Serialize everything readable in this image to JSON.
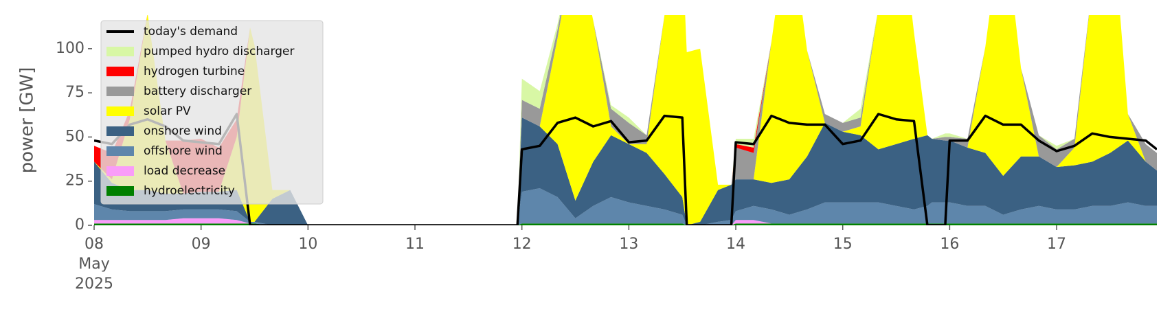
{
  "chart_data": {
    "type": "area",
    "ylabel": "power [GW]",
    "ylim": [
      0,
      119
    ],
    "yticks": [
      0,
      25,
      50,
      75,
      100
    ],
    "xlim": [
      "2025-05-08T00:00",
      "2025-05-17T22:30"
    ],
    "xticks": [
      {
        "value": "2025-05-08",
        "label": "08"
      },
      {
        "value": "2025-05-09",
        "label": "09"
      },
      {
        "value": "2025-05-10",
        "label": "10"
      },
      {
        "value": "2025-05-11",
        "label": "11"
      },
      {
        "value": "2025-05-12",
        "label": "12"
      },
      {
        "value": "2025-05-13",
        "label": "13"
      },
      {
        "value": "2025-05-14",
        "label": "14"
      },
      {
        "value": "2025-05-15",
        "label": "15"
      },
      {
        "value": "2025-05-16",
        "label": "16"
      },
      {
        "value": "2025-05-17",
        "label": "17"
      }
    ],
    "x_tick_sublabels": [
      "May",
      "2025"
    ],
    "legend": "upper left",
    "x": [
      "2025-05-08T00:00",
      "2025-05-08T04:00",
      "2025-05-08T08:00",
      "2025-05-08T12:00",
      "2025-05-08T16:00",
      "2025-05-08T20:00",
      "2025-05-09T00:00",
      "2025-05-09T04:00",
      "2025-05-09T08:00",
      "2025-05-09T11:00",
      "2025-05-09T12:00",
      "2025-05-09T16:00",
      "2025-05-09T20:00",
      "2025-05-10T00:00",
      "2025-05-10T04:00",
      "2025-05-10T08:00",
      "2025-05-10T12:00",
      "2025-05-10T16:00",
      "2025-05-10T20:00",
      "2025-05-11T00:00",
      "2025-05-11T04:00",
      "2025-05-11T08:00",
      "2025-05-11T12:00",
      "2025-05-11T16:00",
      "2025-05-11T20:00",
      "2025-05-11T23:00",
      "2025-05-12T00:00",
      "2025-05-12T04:00",
      "2025-05-12T08:00",
      "2025-05-12T12:00",
      "2025-05-12T16:00",
      "2025-05-12T20:00",
      "2025-05-13T00:00",
      "2025-05-13T04:00",
      "2025-05-13T08:00",
      "2025-05-13T12:00",
      "2025-05-13T13:00",
      "2025-05-13T16:00",
      "2025-05-13T20:00",
      "2025-05-13T23:00",
      "2025-05-14T00:00",
      "2025-05-14T04:00",
      "2025-05-14T08:00",
      "2025-05-14T12:00",
      "2025-05-14T16:00",
      "2025-05-14T20:00",
      "2025-05-15T00:00",
      "2025-05-15T04:00",
      "2025-05-15T08:00",
      "2025-05-15T12:00",
      "2025-05-15T16:00",
      "2025-05-15T19:00",
      "2025-05-15T20:00",
      "2025-05-15T23:00",
      "2025-05-16T00:00",
      "2025-05-16T04:00",
      "2025-05-16T08:00",
      "2025-05-16T12:00",
      "2025-05-16T16:00",
      "2025-05-16T20:00",
      "2025-05-17T00:00",
      "2025-05-17T04:00",
      "2025-05-17T08:00",
      "2025-05-17T12:00",
      "2025-05-17T16:00",
      "2025-05-17T20:00",
      "2025-05-17T22:30"
    ],
    "series": [
      {
        "name": "today's demand",
        "type": "line",
        "color": "#000000",
        "values": [
          48,
          46,
          57,
          60,
          56,
          48,
          47,
          46,
          63,
          0,
          0,
          0,
          0,
          0,
          0,
          0,
          0,
          0,
          0,
          0,
          0,
          0,
          0,
          0,
          0,
          0,
          43,
          45,
          58,
          61,
          56,
          59,
          47,
          48,
          62,
          61,
          0,
          0,
          0,
          0,
          47,
          46,
          62,
          58,
          57,
          57,
          46,
          48,
          63,
          60,
          59,
          0,
          0,
          0,
          48,
          48,
          62,
          57,
          57,
          48,
          42,
          45,
          52,
          50,
          49,
          48,
          43
        ]
      },
      {
        "name": "pumped hydro discharger",
        "color": "#d8f7a5",
        "values": [
          0,
          0,
          0,
          0,
          0,
          0,
          0,
          0,
          0,
          0,
          0,
          0,
          0,
          0,
          0,
          0,
          0,
          0,
          0,
          0,
          0,
          0,
          0,
          0,
          0,
          0,
          12,
          10,
          3,
          0,
          0,
          2,
          3,
          0,
          0,
          0,
          0,
          0,
          0,
          0,
          3,
          5,
          0,
          0,
          0,
          0,
          0,
          5,
          0,
          0,
          0,
          0,
          0,
          2,
          2,
          0,
          0,
          0,
          0,
          0,
          2,
          0,
          0,
          0,
          0,
          0,
          0
        ]
      },
      {
        "name": "hydrogen turbine",
        "color": "#ff0000",
        "values": [
          9,
          15,
          5,
          0,
          0,
          30,
          30,
          25,
          10,
          0,
          0,
          0,
          0,
          0,
          0,
          0,
          0,
          0,
          0,
          0,
          0,
          0,
          0,
          0,
          0,
          0,
          0,
          0,
          0,
          0,
          0,
          0,
          0,
          0,
          0,
          0,
          0,
          0,
          0,
          0,
          2,
          3,
          0,
          0,
          0,
          0,
          0,
          0,
          0,
          0,
          0,
          0,
          0,
          0,
          0,
          0,
          0,
          0,
          0,
          0,
          0,
          0,
          0,
          0,
          0,
          0,
          0
        ]
      },
      {
        "name": "battery discharger",
        "color": "#999999",
        "values": [
          0,
          0,
          0,
          0,
          0,
          0,
          0,
          0,
          0,
          0,
          0,
          0,
          0,
          0,
          0,
          0,
          0,
          0,
          0,
          0,
          0,
          0,
          0,
          0,
          0,
          0,
          10,
          10,
          5,
          0,
          0,
          10,
          12,
          5,
          0,
          0,
          0,
          0,
          0,
          0,
          18,
          15,
          0,
          0,
          0,
          5,
          5,
          5,
          0,
          0,
          0,
          0,
          0,
          2,
          2,
          5,
          0,
          0,
          0,
          12,
          10,
          5,
          0,
          0,
          0,
          10,
          10
        ]
      },
      {
        "name": "solar PV",
        "color": "#ffff00",
        "values": [
          0,
          2,
          40,
          100,
          30,
          0,
          0,
          0,
          30,
          110,
          100,
          5,
          0,
          0,
          0,
          0,
          0,
          0,
          0,
          0,
          0,
          0,
          0,
          0,
          0,
          0,
          0,
          0,
          60,
          150,
          80,
          5,
          0,
          5,
          90,
          140,
          98,
          98,
          3,
          0,
          0,
          0,
          80,
          150,
          60,
          0,
          0,
          5,
          80,
          150,
          60,
          0,
          0,
          0,
          0,
          0,
          60,
          150,
          50,
          0,
          0,
          10,
          100,
          150,
          15,
          0,
          0
        ]
      },
      {
        "name": "onshore wind",
        "color": "#3b6183",
        "values": [
          24,
          15,
          12,
          12,
          10,
          9,
          10,
          10,
          12,
          0,
          0,
          15,
          20,
          0,
          0,
          0,
          0,
          0,
          0,
          0,
          0,
          0,
          0,
          0,
          0,
          0,
          42,
          35,
          30,
          10,
          25,
          35,
          33,
          30,
          20,
          10,
          0,
          2,
          18,
          20,
          18,
          15,
          15,
          20,
          30,
          45,
          40,
          38,
          30,
          35,
          40,
          40,
          36,
          35,
          35,
          33,
          30,
          22,
          30,
          28,
          24,
          25,
          25,
          30,
          35,
          25,
          20
        ]
      },
      {
        "name": "offshore wind",
        "color": "#5e86ab",
        "values": [
          9,
          6,
          5,
          5,
          5,
          5,
          5,
          5,
          5,
          1,
          1,
          0,
          0,
          0,
          0,
          0,
          0,
          0,
          0,
          0,
          0,
          0,
          0,
          0,
          0,
          0,
          18,
          20,
          15,
          3,
          10,
          15,
          12,
          10,
          8,
          5,
          0,
          0,
          2,
          3,
          5,
          8,
          8,
          5,
          8,
          12,
          12,
          12,
          12,
          10,
          8,
          10,
          12,
          12,
          12,
          10,
          10,
          5,
          8,
          10,
          8,
          8,
          10,
          10,
          12,
          10,
          10
        ]
      },
      {
        "name": "load decrease",
        "color": "#f99cf8",
        "values": [
          2,
          2,
          2,
          2,
          2,
          3,
          3,
          3,
          2,
          0,
          0,
          0,
          0,
          0,
          0,
          0,
          0,
          0,
          0,
          0,
          0,
          0,
          0,
          0,
          0,
          0,
          0,
          0,
          0,
          0,
          0,
          0,
          0,
          0,
          0,
          0,
          0,
          0,
          0,
          0,
          2,
          2,
          0,
          0,
          0,
          0,
          0,
          0,
          0,
          0,
          0,
          0,
          0,
          0,
          0,
          0,
          0,
          0,
          0,
          0,
          0,
          0,
          0,
          0,
          0,
          0,
          0
        ]
      },
      {
        "name": "hydroelectricity",
        "color": "#008000",
        "values": [
          1,
          1,
          1,
          1,
          1,
          1,
          1,
          1,
          1,
          1,
          1,
          0,
          0,
          0,
          0,
          0,
          0,
          0,
          0,
          0,
          0,
          0,
          0,
          0,
          0,
          0,
          1,
          1,
          1,
          1,
          1,
          1,
          1,
          1,
          1,
          1,
          0,
          0,
          0,
          0,
          1,
          1,
          1,
          1,
          1,
          1,
          1,
          1,
          1,
          1,
          1,
          1,
          1,
          1,
          1,
          1,
          1,
          1,
          1,
          1,
          1,
          1,
          1,
          1,
          1,
          1,
          1
        ]
      }
    ]
  }
}
